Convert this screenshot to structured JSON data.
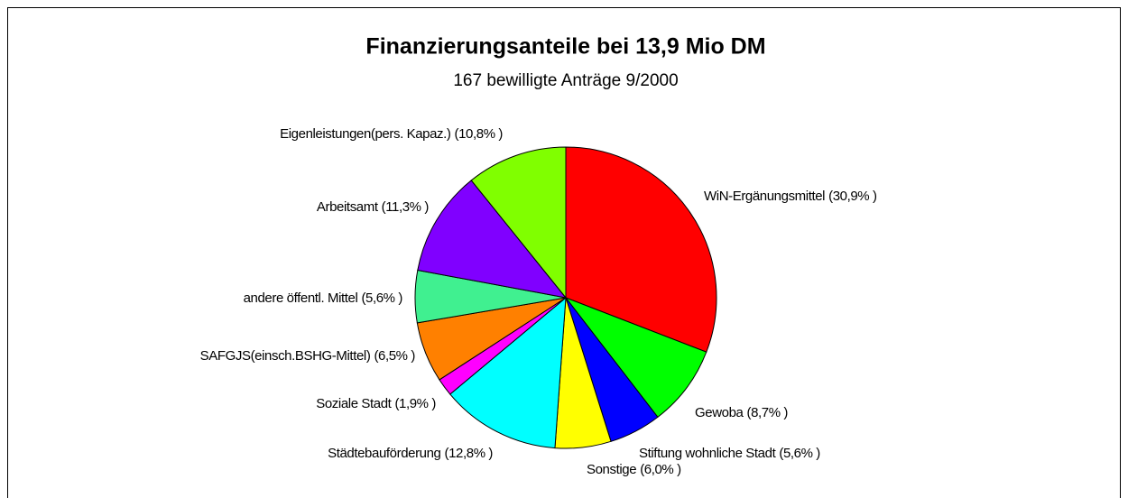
{
  "chart_data": {
    "type": "pie",
    "title": "Finanzierungsanteile bei 13,9 Mio DM",
    "subtitle": "167 bewilligte Anträge 9/2000",
    "categories": [
      "WiN-Ergänungsmittel",
      "Gewoba",
      "Stiftung wohnliche Stadt",
      "Sonstige",
      "Städtebauförderung",
      "Soziale Stadt",
      "SAFGJS(einsch.BSHG-Mittel)",
      "andere öffentl. Mittel",
      "Arbeitsamt",
      "Eigenleistungen(pers. Kapaz.)"
    ],
    "values": [
      30.9,
      8.7,
      5.6,
      6.0,
      12.8,
      1.9,
      6.5,
      5.6,
      11.3,
      10.8
    ],
    "value_labels": [
      "(30,9% )",
      "(8,7% )",
      "(5,6% )",
      "(6,0% )",
      "(12,8% )",
      "(1,9% )",
      "(6,5% )",
      "(5,6% )",
      "(11,3% )",
      "(10,8% )"
    ],
    "colors": [
      "#ff0000",
      "#00ff00",
      "#0000ff",
      "#ffff00",
      "#00ffff",
      "#ff00ff",
      "#ff8000",
      "#40f090",
      "#8000ff",
      "#80ff00"
    ]
  }
}
